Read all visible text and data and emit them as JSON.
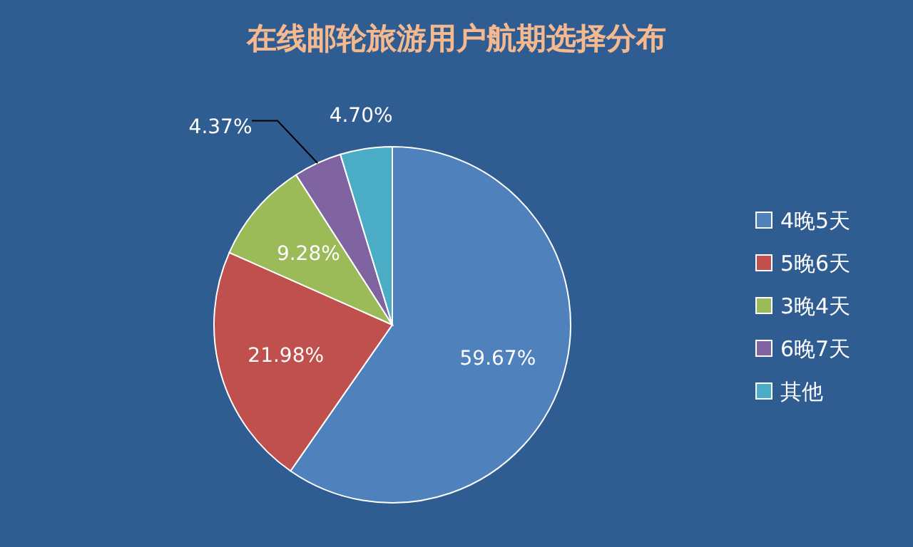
{
  "chart_data": {
    "type": "pie",
    "title": "在线邮轮旅游用户航期选择分布",
    "categories": [
      "4晚5天",
      "5晚6天",
      "3晚4天",
      "6晚7天",
      "其他"
    ],
    "values": [
      59.67,
      21.98,
      9.28,
      4.37,
      4.7
    ],
    "colors": [
      "#4f81bd",
      "#c0504d",
      "#9bbb59",
      "#8064a2",
      "#4bacc6"
    ],
    "value_labels": [
      "59.67%",
      "21.98%",
      "9.28%",
      "4.37%",
      "4.70%"
    ],
    "legend": "right"
  }
}
